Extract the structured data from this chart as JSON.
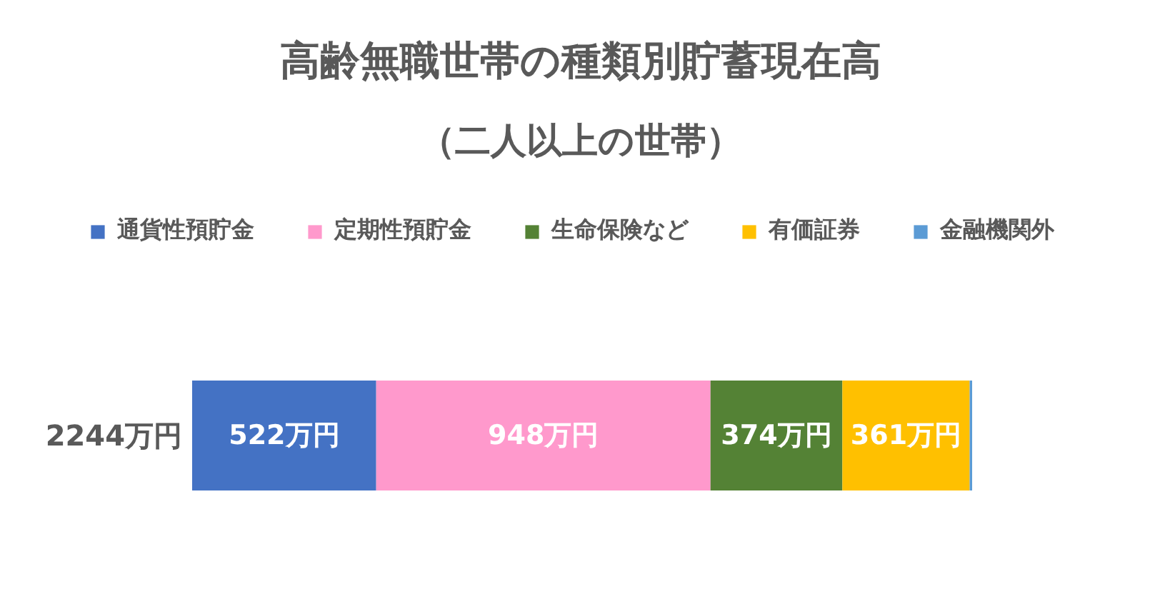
{
  "chart_data": {
    "type": "bar",
    "orientation": "horizontal",
    "stacked": true,
    "title": "高齢無職世帯の種類別貯蓄現在高",
    "subtitle": "（二人以上の世帯）",
    "categories": [
      "2244万円"
    ],
    "series": [
      {
        "name": "通貨性預貯金",
        "color": "#4472c4",
        "values": [
          522
        ],
        "value_labels": [
          "522万円"
        ]
      },
      {
        "name": "定期性預貯金",
        "color": "#ff99cc",
        "values": [
          948
        ],
        "value_labels": [
          "948万円"
        ]
      },
      {
        "name": "生命保険など",
        "color": "#548235",
        "values": [
          374
        ],
        "value_labels": [
          "374万円"
        ]
      },
      {
        "name": "有価証券",
        "color": "#ffc000",
        "values": [
          361
        ],
        "value_labels": [
          "361万円"
        ]
      },
      {
        "name": "金融機関外",
        "color": "#5b9bd5",
        "values": [
          7
        ],
        "value_labels": [
          null
        ]
      }
    ],
    "legend": "top",
    "tick_labels": "y"
  }
}
